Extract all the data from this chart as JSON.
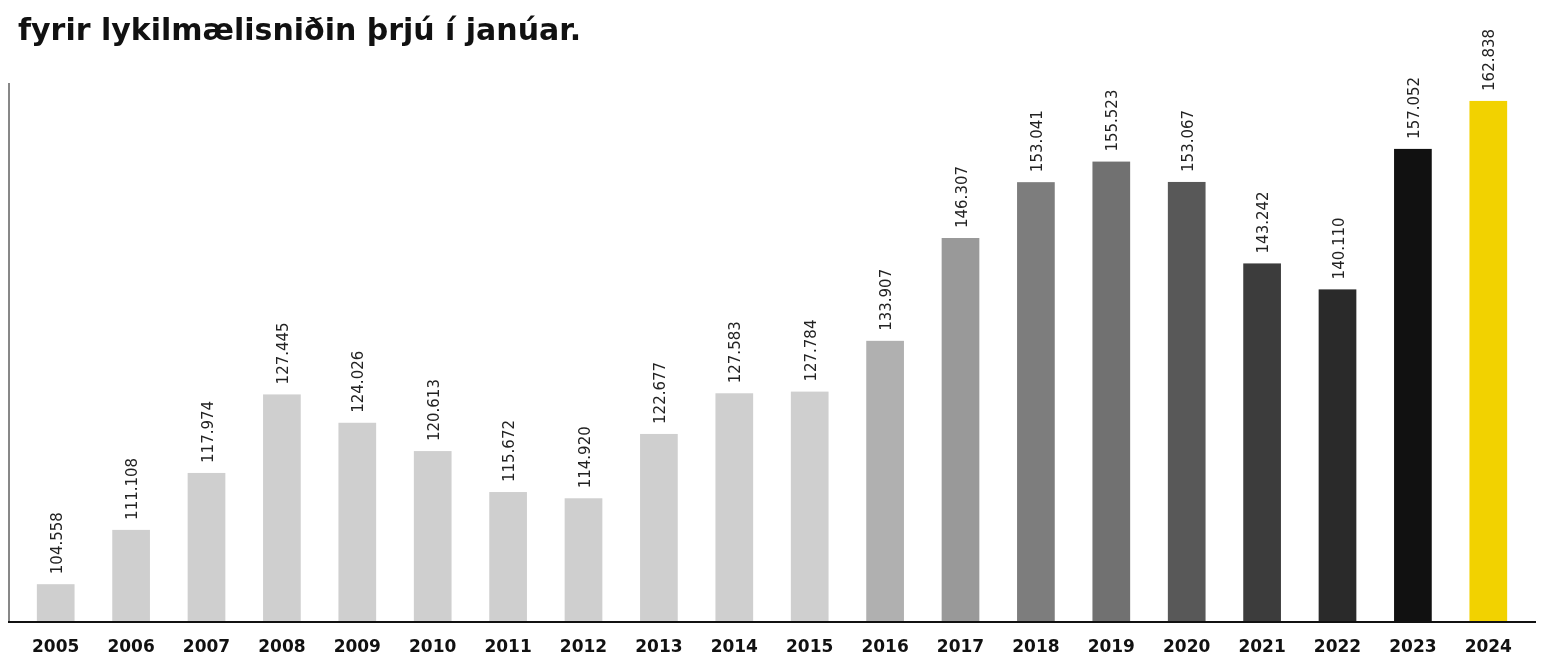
{
  "chart_data": {
    "type": "bar",
    "title": "fyrir lykilmælisniðin þrjú í janúar.",
    "categories": [
      "2005",
      "2006",
      "2007",
      "2008",
      "2009",
      "2010",
      "2011",
      "2012",
      "2013",
      "2014",
      "2015",
      "2016",
      "2017",
      "2018",
      "2019",
      "2020",
      "2021",
      "2022",
      "2023",
      "2024"
    ],
    "values": [
      104558,
      111108,
      117974,
      127445,
      124026,
      120613,
      115672,
      114920,
      122677,
      127583,
      127784,
      133907,
      146307,
      153041,
      155523,
      153067,
      143242,
      140110,
      157052,
      162838
    ],
    "value_labels": [
      "104.558",
      "111.108",
      "117.974",
      "127.445",
      "124.026",
      "120.613",
      "115.672",
      "114.920",
      "122.677",
      "127.583",
      "127.784",
      "133.907",
      "146.307",
      "153.041",
      "155.523",
      "153.067",
      "143.242",
      "140.110",
      "157.052",
      "162.838"
    ],
    "colors": [
      "#cfcfcf",
      "#cfcfcf",
      "#cfcfcf",
      "#cfcfcf",
      "#cfcfcf",
      "#cfcfcf",
      "#cfcfcf",
      "#cfcfcf",
      "#cfcfcf",
      "#cfcfcf",
      "#cfcfcf",
      "#b0b0b0",
      "#999999",
      "#7d7d7d",
      "#717171",
      "#585858",
      "#3c3c3c",
      "#2a2a2a",
      "#111111",
      "#f2d200"
    ],
    "ylim": [
      100000,
      165000
    ],
    "tick_labels": "x"
  }
}
